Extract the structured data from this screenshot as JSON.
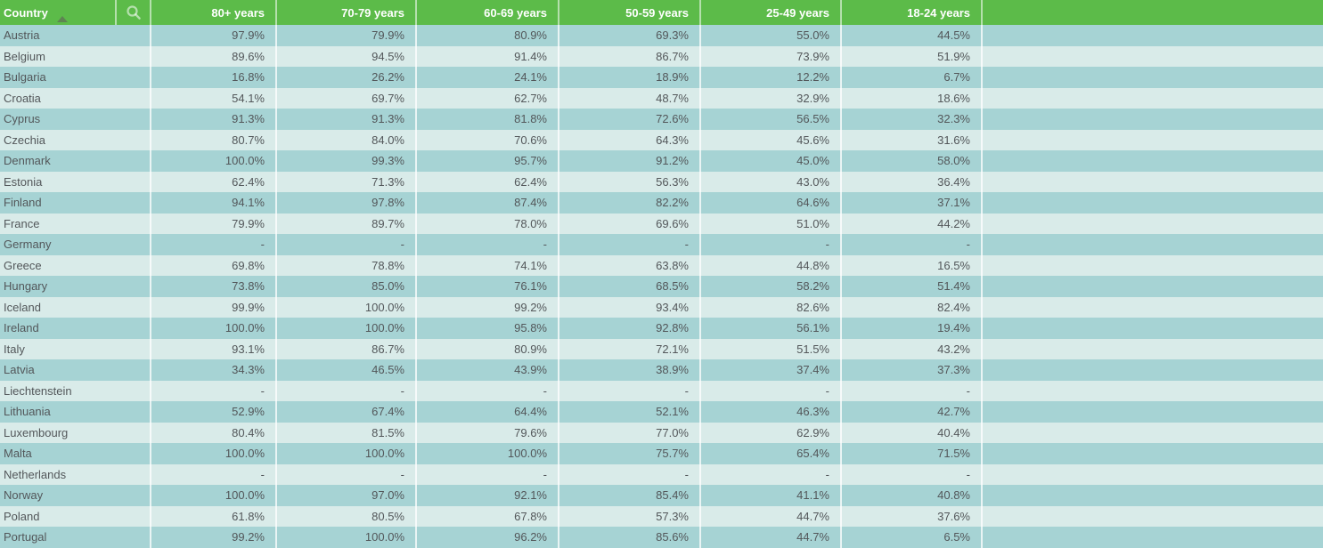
{
  "colors": {
    "header_green": "#5cbb49",
    "row_dark": "#a6d3d4",
    "row_light": "#d9ebe9",
    "row_text": "#53575a",
    "header_text": "#ffffff",
    "divider": "rgba(255,255,255,0.7)",
    "sort_arrow_gray": "#8c8c85"
  },
  "table": {
    "null_placeholder": "-",
    "sort_state": "ascending-by-country",
    "icons": {
      "search": "search-icon",
      "sort": "sort-ascending-icon"
    }
  },
  "chart_data": {
    "type": "table",
    "first_column": "Country",
    "columns": [
      "80+ years",
      "70-79 years",
      "60-69 years",
      "50-59 years",
      "25-49 years",
      "18-24 years"
    ],
    "unit": "%",
    "rows": [
      {
        "country": "Austria",
        "values": [
          97.9,
          79.9,
          80.9,
          69.3,
          55.0,
          44.5
        ]
      },
      {
        "country": "Belgium",
        "values": [
          89.6,
          94.5,
          91.4,
          86.7,
          73.9,
          51.9
        ]
      },
      {
        "country": "Bulgaria",
        "values": [
          16.8,
          26.2,
          24.1,
          18.9,
          12.2,
          6.7
        ]
      },
      {
        "country": "Croatia",
        "values": [
          54.1,
          69.7,
          62.7,
          48.7,
          32.9,
          18.6
        ]
      },
      {
        "country": "Cyprus",
        "values": [
          91.3,
          91.3,
          81.8,
          72.6,
          56.5,
          32.3
        ]
      },
      {
        "country": "Czechia",
        "values": [
          80.7,
          84.0,
          70.6,
          64.3,
          45.6,
          31.6
        ]
      },
      {
        "country": "Denmark",
        "values": [
          100.0,
          99.3,
          95.7,
          91.2,
          45.0,
          58.0
        ]
      },
      {
        "country": "Estonia",
        "values": [
          62.4,
          71.3,
          62.4,
          56.3,
          43.0,
          36.4
        ]
      },
      {
        "country": "Finland",
        "values": [
          94.1,
          97.8,
          87.4,
          82.2,
          64.6,
          37.1
        ]
      },
      {
        "country": "France",
        "values": [
          79.9,
          89.7,
          78.0,
          69.6,
          51.0,
          44.2
        ]
      },
      {
        "country": "Germany",
        "values": [
          null,
          null,
          null,
          null,
          null,
          null
        ]
      },
      {
        "country": "Greece",
        "values": [
          69.8,
          78.8,
          74.1,
          63.8,
          44.8,
          16.5
        ]
      },
      {
        "country": "Hungary",
        "values": [
          73.8,
          85.0,
          76.1,
          68.5,
          58.2,
          51.4
        ]
      },
      {
        "country": "Iceland",
        "values": [
          99.9,
          100.0,
          99.2,
          93.4,
          82.6,
          82.4
        ]
      },
      {
        "country": "Ireland",
        "values": [
          100.0,
          100.0,
          95.8,
          92.8,
          56.1,
          19.4
        ]
      },
      {
        "country": "Italy",
        "values": [
          93.1,
          86.7,
          80.9,
          72.1,
          51.5,
          43.2
        ]
      },
      {
        "country": "Latvia",
        "values": [
          34.3,
          46.5,
          43.9,
          38.9,
          37.4,
          37.3
        ]
      },
      {
        "country": "Liechtenstein",
        "values": [
          null,
          null,
          null,
          null,
          null,
          null
        ]
      },
      {
        "country": "Lithuania",
        "values": [
          52.9,
          67.4,
          64.4,
          52.1,
          46.3,
          42.7
        ]
      },
      {
        "country": "Luxembourg",
        "values": [
          80.4,
          81.5,
          79.6,
          77.0,
          62.9,
          40.4
        ]
      },
      {
        "country": "Malta",
        "values": [
          100.0,
          100.0,
          100.0,
          75.7,
          65.4,
          71.5
        ]
      },
      {
        "country": "Netherlands",
        "values": [
          null,
          null,
          null,
          null,
          null,
          null
        ]
      },
      {
        "country": "Norway",
        "values": [
          100.0,
          97.0,
          92.1,
          85.4,
          41.1,
          40.8
        ]
      },
      {
        "country": "Poland",
        "values": [
          61.8,
          80.5,
          67.8,
          57.3,
          44.7,
          37.6
        ]
      },
      {
        "country": "Portugal",
        "values": [
          99.2,
          100.0,
          96.2,
          85.6,
          44.7,
          6.5
        ]
      }
    ]
  }
}
